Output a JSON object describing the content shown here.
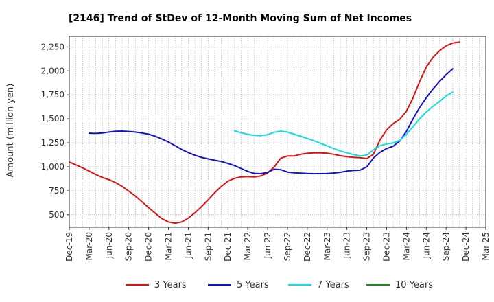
{
  "chart_data": {
    "type": "line",
    "title": "[2146]  Trend of StDev of 12-Month Moving Sum of Net Incomes",
    "ylabel": "Amount (million yen)",
    "xlabel": "",
    "ylim": [
      370,
      2360
    ],
    "yticks": [
      500,
      750,
      1000,
      1250,
      1500,
      1750,
      2000,
      2250
    ],
    "ytick_labels": [
      "500",
      "750",
      "1,000",
      "1,250",
      "1,500",
      "1,750",
      "2,000",
      "2,250"
    ],
    "xticks": [
      "Dec-19",
      "Mar-20",
      "Jun-20",
      "Sep-20",
      "Dec-20",
      "Mar-21",
      "Jun-21",
      "Sep-21",
      "Dec-21",
      "Mar-22",
      "Jun-22",
      "Sep-22",
      "Dec-22",
      "Mar-23",
      "Jun-23",
      "Sep-23",
      "Dec-23",
      "Mar-24",
      "Jun-24",
      "Sep-24",
      "Dec-24",
      "Mar-25"
    ],
    "grid": true,
    "legend_position": "bottom",
    "series": [
      {
        "name": "3 Years",
        "color": "#dd1111",
        "start_index": 0,
        "values": [
          1050,
          1020,
          990,
          955,
          920,
          890,
          865,
          835,
          795,
          745,
          695,
          635,
          575,
          515,
          460,
          425,
          412,
          425,
          465,
          520,
          585,
          655,
          730,
          795,
          850,
          880,
          895,
          898,
          895,
          905,
          935,
          1000,
          1090,
          1112,
          1112,
          1130,
          1140,
          1145,
          1145,
          1142,
          1130,
          1115,
          1105,
          1098,
          1095,
          1085,
          1130,
          1280,
          1385,
          1450,
          1495,
          1580,
          1720,
          1890,
          2040,
          2140,
          2210,
          2262,
          2290,
          2300
        ]
      },
      {
        "name": "5 Years",
        "color": "#1111cc",
        "start_index": 3,
        "values": [
          1350,
          1348,
          1352,
          1362,
          1370,
          1372,
          1368,
          1362,
          1352,
          1340,
          1318,
          1290,
          1258,
          1220,
          1180,
          1148,
          1120,
          1098,
          1082,
          1068,
          1055,
          1035,
          1012,
          982,
          952,
          930,
          928,
          942,
          975,
          970,
          945,
          938,
          933,
          930,
          928,
          928,
          930,
          935,
          943,
          955,
          963,
          965,
          1000,
          1090,
          1150,
          1190,
          1215,
          1270,
          1370,
          1500,
          1620,
          1720,
          1810,
          1890,
          1960,
          2022
        ]
      },
      {
        "name": "7 Years",
        "color": "#11dddd",
        "start_index": 25,
        "values": [
          1375,
          1355,
          1338,
          1328,
          1325,
          1335,
          1360,
          1372,
          1362,
          1340,
          1318,
          1295,
          1272,
          1245,
          1218,
          1190,
          1165,
          1145,
          1128,
          1112,
          1122,
          1175,
          1220,
          1238,
          1248,
          1275,
          1340,
          1420,
          1500,
          1572,
          1630,
          1682,
          1738,
          1778
        ]
      },
      {
        "name": "10 Years",
        "color": "#228822",
        "start_index": 0,
        "values": []
      }
    ]
  }
}
